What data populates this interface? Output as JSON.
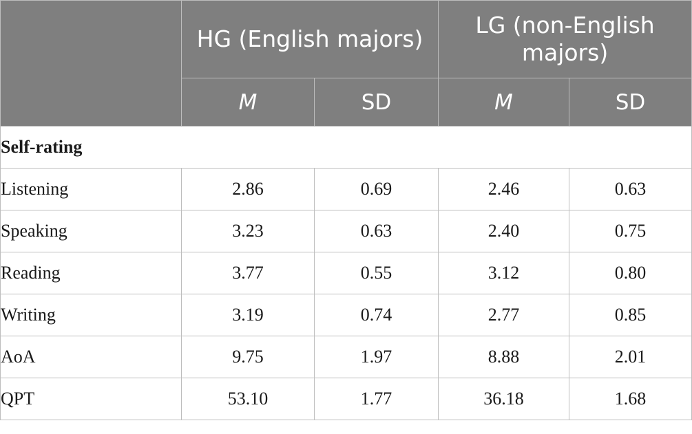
{
  "table": {
    "header": {
      "empty": "",
      "group1": "HG (English majors)",
      "group2": "LG (non-English majors)",
      "m_label": "M",
      "sd_label": "SD"
    },
    "section": "Self-rating",
    "rows": [
      {
        "label": "Listening",
        "hg_m": "2.86",
        "hg_sd": "0.69",
        "lg_m": "2.46",
        "lg_sd": "0.63"
      },
      {
        "label": "Speaking",
        "hg_m": "3.23",
        "hg_sd": "0.63",
        "lg_m": "2.40",
        "lg_sd": "0.75"
      },
      {
        "label": "Reading",
        "hg_m": "3.77",
        "hg_sd": "0.55",
        "lg_m": "3.12",
        "lg_sd": "0.80"
      },
      {
        "label": "Writing",
        "hg_m": "3.19",
        "hg_sd": "0.74",
        "lg_m": "2.77",
        "lg_sd": "0.85"
      },
      {
        "label": "AoA",
        "hg_m": "9.75",
        "hg_sd": "1.97",
        "lg_m": "8.88",
        "lg_sd": "2.01"
      },
      {
        "label": "QPT",
        "hg_m": "53.10",
        "hg_sd": "1.77",
        "lg_m": "36.18",
        "lg_sd": "1.68"
      }
    ]
  }
}
